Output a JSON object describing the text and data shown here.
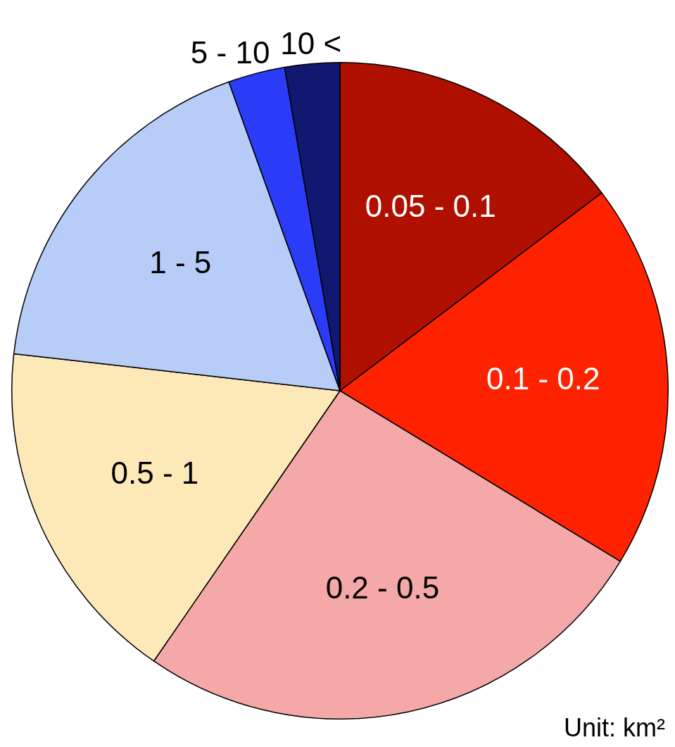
{
  "chart_data": {
    "type": "pie",
    "categories": [
      "0.05 - 0.1",
      "0.1 - 0.2",
      "0.2 - 0.5",
      "0.5 - 1",
      "1 - 5",
      "5 - 10",
      "10 <"
    ],
    "values": [
      14.7,
      19.0,
      25.9,
      17.2,
      17.7,
      2.8,
      2.7
    ],
    "colors": [
      "#b01000",
      "#ff2200",
      "#f4a8a8",
      "#fde8b8",
      "#b8ccf8",
      "#2a3cf8",
      "#101870"
    ],
    "legend": false,
    "annotations": [
      "Unit: km²"
    ]
  }
}
